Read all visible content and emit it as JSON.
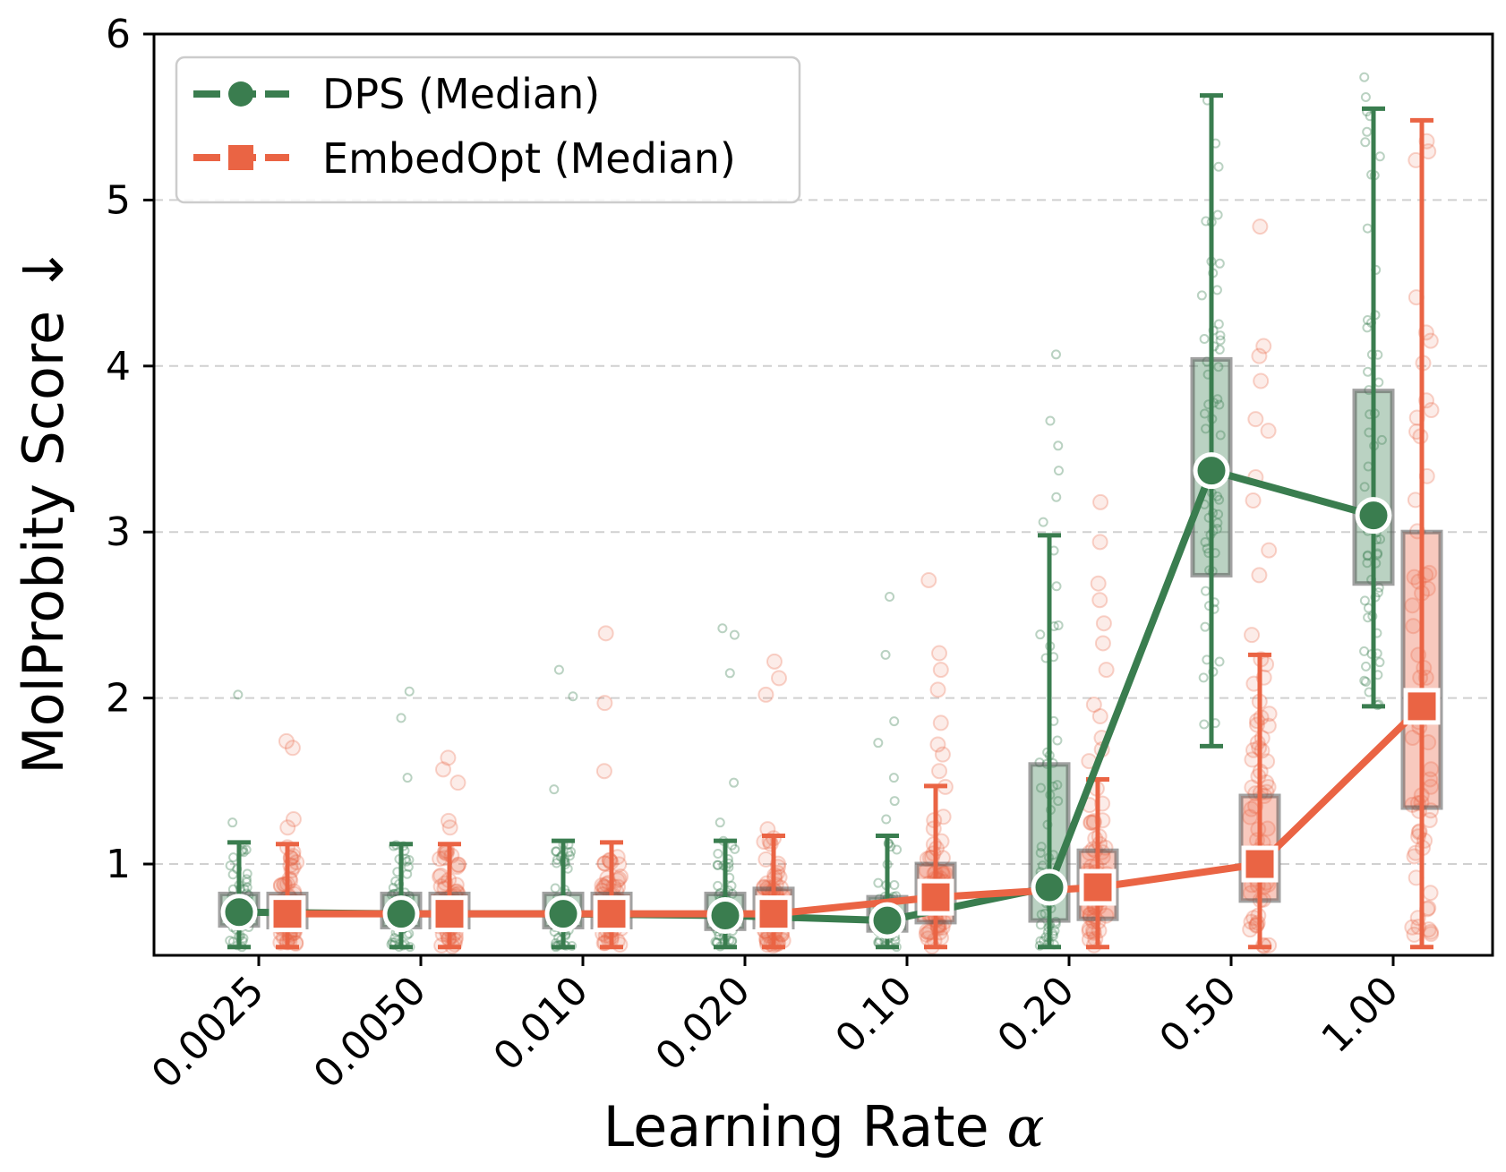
{
  "chart_data": {
    "type": "box-strip-line",
    "xlabel": "Learning Rate",
    "xlabel_symbol": "α",
    "ylabel": "MolProbity Score ↓",
    "ylim": [
      0.45,
      6.0
    ],
    "yticks": [
      1,
      2,
      3,
      4,
      5,
      6
    ],
    "grid": "y-dashed",
    "legend_position": "top-left",
    "categories": [
      "0.0025",
      "0.0050",
      "0.010",
      "0.020",
      "0.10",
      "0.20",
      "0.50",
      "1.00"
    ],
    "series": [
      {
        "name": "DPS (Median)",
        "color": "#3a7d4f",
        "marker": "circle",
        "medians": [
          0.71,
          0.7,
          0.7,
          0.69,
          0.66,
          0.86,
          3.37,
          3.1
        ],
        "whisker_low": [
          0.5,
          0.5,
          0.5,
          0.5,
          0.5,
          0.5,
          1.71,
          1.95
        ],
        "whisker_high": [
          1.13,
          1.12,
          1.14,
          1.14,
          1.17,
          2.98,
          5.63,
          5.55
        ],
        "q1": [
          0.63,
          0.62,
          0.62,
          0.61,
          0.6,
          0.66,
          2.74,
          2.69
        ],
        "q3": [
          0.82,
          0.82,
          0.82,
          0.82,
          0.8,
          1.6,
          4.04,
          3.85
        ],
        "outliers": [
          [
            2.02,
            1.25
          ],
          [
            2.04,
            1.88,
            1.52
          ],
          [
            2.17,
            2.01,
            1.45
          ],
          [
            2.42,
            2.38,
            2.15,
            1.49,
            1.25
          ],
          [
            2.61,
            2.26,
            1.86,
            1.73,
            1.52,
            1.38,
            1.27
          ],
          [
            4.07,
            3.67,
            3.52,
            3.37,
            3.21,
            3.06
          ],
          [],
          [
            5.74,
            5.62
          ]
        ]
      },
      {
        "name": "EmbedOpt (Median)",
        "color": "#ea6444",
        "marker": "square",
        "medians": [
          0.7,
          0.7,
          0.7,
          0.7,
          0.8,
          0.86,
          1.0,
          1.95
        ],
        "whisker_low": [
          0.5,
          0.5,
          0.5,
          0.5,
          0.5,
          0.5,
          0.5,
          0.5
        ],
        "whisker_high": [
          1.12,
          1.12,
          1.13,
          1.17,
          1.47,
          1.51,
          2.26,
          5.48
        ],
        "q1": [
          0.62,
          0.62,
          0.62,
          0.62,
          0.65,
          0.67,
          0.78,
          1.34
        ],
        "q3": [
          0.82,
          0.82,
          0.82,
          0.85,
          1.0,
          1.08,
          1.41,
          3.0
        ],
        "outliers": [
          [
            1.74,
            1.7,
            1.27,
            1.22
          ],
          [
            1.64,
            1.57,
            1.49,
            1.26,
            1.22
          ],
          [
            2.39,
            1.97,
            1.56
          ],
          [
            2.22,
            2.12,
            2.02,
            1.21
          ],
          [
            2.71,
            2.27,
            2.17,
            2.05,
            1.85,
            1.72,
            1.66,
            1.56
          ],
          [
            3.18,
            2.94,
            2.69,
            2.59,
            2.45,
            2.33,
            2.17,
            1.96,
            1.89,
            1.76,
            1.69,
            1.62
          ],
          [
            4.84,
            4.12,
            4.06,
            3.91,
            3.68,
            3.61,
            3.33,
            3.19,
            2.89,
            2.74,
            2.38
          ],
          [
            5.24
          ]
        ]
      }
    ]
  }
}
